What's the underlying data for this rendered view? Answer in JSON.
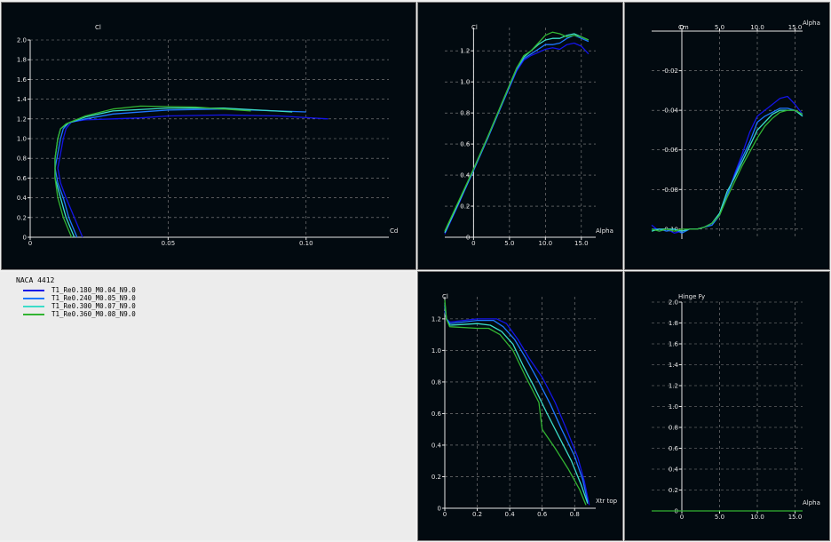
{
  "legend": {
    "title": "NACA 4412",
    "items": [
      {
        "label": "T1_Re0.180_M0.04_N9.0",
        "color": "#1414e6"
      },
      {
        "label": "T1_Re0.240_M0.05_N9.0",
        "color": "#1e78ff"
      },
      {
        "label": "T1_Re0.300_M0.07_N9.0",
        "color": "#3cdcc8"
      },
      {
        "label": "T1_Re0.360_M0.08_N9.0",
        "color": "#32b432"
      }
    ]
  },
  "chart_data": [
    {
      "id": "polar",
      "type": "line",
      "xlabel": "Cd",
      "ylabel": "Cl",
      "xlim": [
        0,
        0.13
      ],
      "ylim": [
        0,
        2.0
      ],
      "xticks": [
        "0",
        "0.05",
        "0.10"
      ],
      "yticks": [
        "0",
        "0.2",
        "0.4",
        "0.6",
        "0.8",
        "1.0",
        "1.2",
        "1.4",
        "1.6",
        "1.8",
        "2.0"
      ],
      "grid": true,
      "series": [
        {
          "color": "#1414e6",
          "x": [
            0.019,
            0.016,
            0.013,
            0.011,
            0.01,
            0.011,
            0.012,
            0.013,
            0.015,
            0.02,
            0.03,
            0.04,
            0.05,
            0.07,
            0.09,
            0.108
          ],
          "y": [
            0,
            0.2,
            0.4,
            0.55,
            0.7,
            0.85,
            1.0,
            1.1,
            1.17,
            1.19,
            1.2,
            1.21,
            1.23,
            1.24,
            1.23,
            1.2
          ]
        },
        {
          "color": "#1e78ff",
          "x": [
            0.017,
            0.014,
            0.012,
            0.01,
            0.009,
            0.01,
            0.011,
            0.012,
            0.014,
            0.02,
            0.03,
            0.05,
            0.07,
            0.1
          ],
          "y": [
            0,
            0.2,
            0.4,
            0.55,
            0.7,
            0.85,
            1.0,
            1.1,
            1.16,
            1.2,
            1.25,
            1.29,
            1.3,
            1.27
          ]
        },
        {
          "color": "#3cdcc8",
          "x": [
            0.016,
            0.013,
            0.011,
            0.009,
            0.009,
            0.01,
            0.011,
            0.014,
            0.02,
            0.03,
            0.05,
            0.07,
            0.095
          ],
          "y": [
            0,
            0.2,
            0.4,
            0.6,
            0.8,
            1.0,
            1.1,
            1.16,
            1.22,
            1.28,
            1.31,
            1.31,
            1.27
          ]
        },
        {
          "color": "#32b432",
          "x": [
            0.015,
            0.012,
            0.01,
            0.009,
            0.009,
            0.01,
            0.011,
            0.013,
            0.02,
            0.03,
            0.04,
            0.06,
            0.08
          ],
          "y": [
            0,
            0.2,
            0.4,
            0.6,
            0.8,
            1.0,
            1.1,
            1.15,
            1.23,
            1.3,
            1.33,
            1.32,
            1.28
          ]
        }
      ]
    },
    {
      "id": "cl-alpha",
      "type": "line",
      "xlabel": "Alpha",
      "ylabel": "Cl",
      "xlim": [
        -4,
        17
      ],
      "ylim": [
        0,
        1.35
      ],
      "xticks": [
        "0",
        "5.0",
        "10.0",
        "15.0"
      ],
      "yticks": [
        "0",
        "0.2",
        "0.4",
        "0.6",
        "0.8",
        "1.0",
        "1.2"
      ],
      "grid": true,
      "series": [
        {
          "color": "#1414e6",
          "x": [
            -4,
            -2,
            0,
            2,
            4,
            6,
            7,
            8,
            9,
            10,
            11,
            12,
            13,
            14,
            15,
            16
          ],
          "y": [
            0.02,
            0.22,
            0.43,
            0.64,
            0.86,
            1.07,
            1.14,
            1.17,
            1.19,
            1.21,
            1.22,
            1.21,
            1.24,
            1.25,
            1.23,
            1.18
          ]
        },
        {
          "color": "#1e78ff",
          "x": [
            -4,
            -2,
            0,
            2,
            4,
            6,
            7,
            8,
            9,
            10,
            11,
            12,
            13,
            14,
            15,
            16
          ],
          "y": [
            0.03,
            0.23,
            0.43,
            0.64,
            0.86,
            1.08,
            1.15,
            1.18,
            1.21,
            1.24,
            1.24,
            1.25,
            1.28,
            1.3,
            1.28,
            1.26
          ]
        },
        {
          "color": "#3cdcc8",
          "x": [
            -4,
            -2,
            0,
            2,
            4,
            6,
            7,
            8,
            9,
            10,
            11,
            12,
            13,
            14,
            15,
            16
          ],
          "y": [
            0.03,
            0.23,
            0.44,
            0.65,
            0.87,
            1.09,
            1.16,
            1.2,
            1.24,
            1.27,
            1.28,
            1.28,
            1.3,
            1.31,
            1.29,
            1.27
          ]
        },
        {
          "color": "#32b432",
          "x": [
            -4,
            -2,
            0,
            2,
            4,
            6,
            7,
            8,
            9,
            10,
            11,
            12,
            13,
            14,
            15,
            16
          ],
          "y": [
            0.04,
            0.24,
            0.44,
            0.65,
            0.87,
            1.09,
            1.17,
            1.2,
            1.25,
            1.3,
            1.32,
            1.31,
            1.29,
            1.3,
            1.29,
            1.27
          ]
        }
      ]
    },
    {
      "id": "cm-alpha",
      "type": "line",
      "xlabel": "Alpha",
      "ylabel": "Cm",
      "xlim": [
        -4,
        16
      ],
      "ylim": [
        -0.105,
        0.0
      ],
      "xticks": [
        "0",
        "5.0",
        "10.0",
        "15.0"
      ],
      "yticks": [
        "-0.02",
        "-0.04",
        "-0.06",
        "-0.08",
        "-0.10"
      ],
      "grid": true,
      "series": [
        {
          "color": "#1414e6",
          "x": [
            -4,
            -3,
            -2,
            -1,
            0,
            1,
            2,
            3,
            4,
            5,
            6,
            7,
            8,
            9,
            10,
            11,
            12,
            13,
            14,
            15,
            16
          ],
          "y": [
            -0.098,
            -0.101,
            -0.1,
            -0.102,
            -0.101,
            -0.1,
            -0.1,
            -0.099,
            -0.097,
            -0.092,
            -0.083,
            -0.072,
            -0.062,
            -0.051,
            -0.043,
            -0.04,
            -0.037,
            -0.034,
            -0.033,
            -0.037,
            -0.042
          ]
        },
        {
          "color": "#1e78ff",
          "x": [
            -4,
            -3,
            -2,
            -1,
            0,
            1,
            2,
            3,
            4,
            5,
            6,
            7,
            8,
            9,
            10,
            11,
            12,
            13,
            14,
            15,
            16
          ],
          "y": [
            -0.1,
            -0.1,
            -0.101,
            -0.1,
            -0.102,
            -0.1,
            -0.1,
            -0.099,
            -0.098,
            -0.093,
            -0.083,
            -0.073,
            -0.064,
            -0.056,
            -0.046,
            -0.043,
            -0.041,
            -0.039,
            -0.039,
            -0.04,
            -0.043
          ]
        },
        {
          "color": "#3cdcc8",
          "x": [
            -4,
            -3,
            -2,
            -1,
            0,
            1,
            2,
            3,
            4,
            5,
            6,
            7,
            8,
            9,
            10,
            11,
            12,
            13,
            14,
            15,
            16
          ],
          "y": [
            -0.101,
            -0.1,
            -0.1,
            -0.1,
            -0.101,
            -0.1,
            -0.1,
            -0.099,
            -0.097,
            -0.092,
            -0.081,
            -0.074,
            -0.066,
            -0.058,
            -0.05,
            -0.046,
            -0.042,
            -0.04,
            -0.04,
            -0.04,
            -0.043
          ]
        },
        {
          "color": "#32b432",
          "x": [
            -4,
            -3,
            -2,
            -1,
            0,
            1,
            2,
            3,
            4,
            5,
            6,
            7,
            8,
            9,
            10,
            11,
            12,
            13,
            14,
            15,
            16
          ],
          "y": [
            -0.1,
            -0.101,
            -0.1,
            -0.101,
            -0.1,
            -0.1,
            -0.1,
            -0.099,
            -0.097,
            -0.093,
            -0.084,
            -0.076,
            -0.068,
            -0.061,
            -0.054,
            -0.048,
            -0.044,
            -0.041,
            -0.04,
            -0.04,
            -0.042
          ]
        }
      ]
    },
    {
      "id": "cl-xtr",
      "type": "line",
      "xlabel": "Xtr top",
      "ylabel": "Cl",
      "xlim": [
        0,
        0.93
      ],
      "ylim": [
        0,
        1.34
      ],
      "xticks": [
        "0",
        "0.2",
        "0.4",
        "0.6",
        "0.8"
      ],
      "yticks": [
        "0",
        "0.2",
        "0.4",
        "0.6",
        "0.8",
        "1.0",
        "1.2"
      ],
      "grid": true,
      "series": [
        {
          "color": "#1414e6",
          "x": [
            0.0,
            0.01,
            0.03,
            0.2,
            0.32,
            0.38,
            0.45,
            0.52,
            0.6,
            0.68,
            0.75,
            0.82,
            0.86,
            0.89
          ],
          "y": [
            1.25,
            1.2,
            1.18,
            1.2,
            1.2,
            1.17,
            1.07,
            0.95,
            0.83,
            0.67,
            0.5,
            0.32,
            0.17,
            0.02
          ]
        },
        {
          "color": "#1e78ff",
          "x": [
            0.0,
            0.01,
            0.03,
            0.2,
            0.3,
            0.36,
            0.43,
            0.5,
            0.57,
            0.65,
            0.72,
            0.8,
            0.85,
            0.88
          ],
          "y": [
            1.28,
            1.2,
            1.17,
            1.19,
            1.19,
            1.15,
            1.07,
            0.95,
            0.82,
            0.66,
            0.5,
            0.33,
            0.18,
            0.04
          ]
        },
        {
          "color": "#3cdcc8",
          "x": [
            0.0,
            0.01,
            0.03,
            0.2,
            0.28,
            0.35,
            0.42,
            0.48,
            0.55,
            0.63,
            0.7,
            0.78,
            0.84,
            0.88
          ],
          "y": [
            1.3,
            1.2,
            1.16,
            1.17,
            1.16,
            1.12,
            1.04,
            0.91,
            0.77,
            0.6,
            0.46,
            0.3,
            0.15,
            0.03
          ]
        },
        {
          "color": "#32b432",
          "x": [
            0.0,
            0.01,
            0.03,
            0.2,
            0.27,
            0.34,
            0.42,
            0.5,
            0.58,
            0.6,
            0.68,
            0.76,
            0.83,
            0.87
          ],
          "y": [
            1.32,
            1.2,
            1.15,
            1.14,
            1.14,
            1.1,
            1.0,
            0.83,
            0.67,
            0.5,
            0.38,
            0.25,
            0.12,
            0.02
          ]
        }
      ]
    },
    {
      "id": "hinge",
      "type": "line",
      "xlabel": "Alpha",
      "ylabel": "Hinge Fy",
      "xlim": [
        -4,
        16
      ],
      "ylim": [
        0,
        2.0
      ],
      "xticks": [
        "0",
        "5.0",
        "10.0",
        "15.0"
      ],
      "yticks": [
        "0",
        "0.2",
        "0.4",
        "0.6",
        "0.8",
        "1.0",
        "1.2",
        "1.4",
        "1.6",
        "1.8",
        "2.0"
      ],
      "grid": true,
      "series": [
        {
          "color": "#32b432",
          "x": [
            -4,
            16
          ],
          "y": [
            0,
            0
          ]
        }
      ]
    }
  ]
}
